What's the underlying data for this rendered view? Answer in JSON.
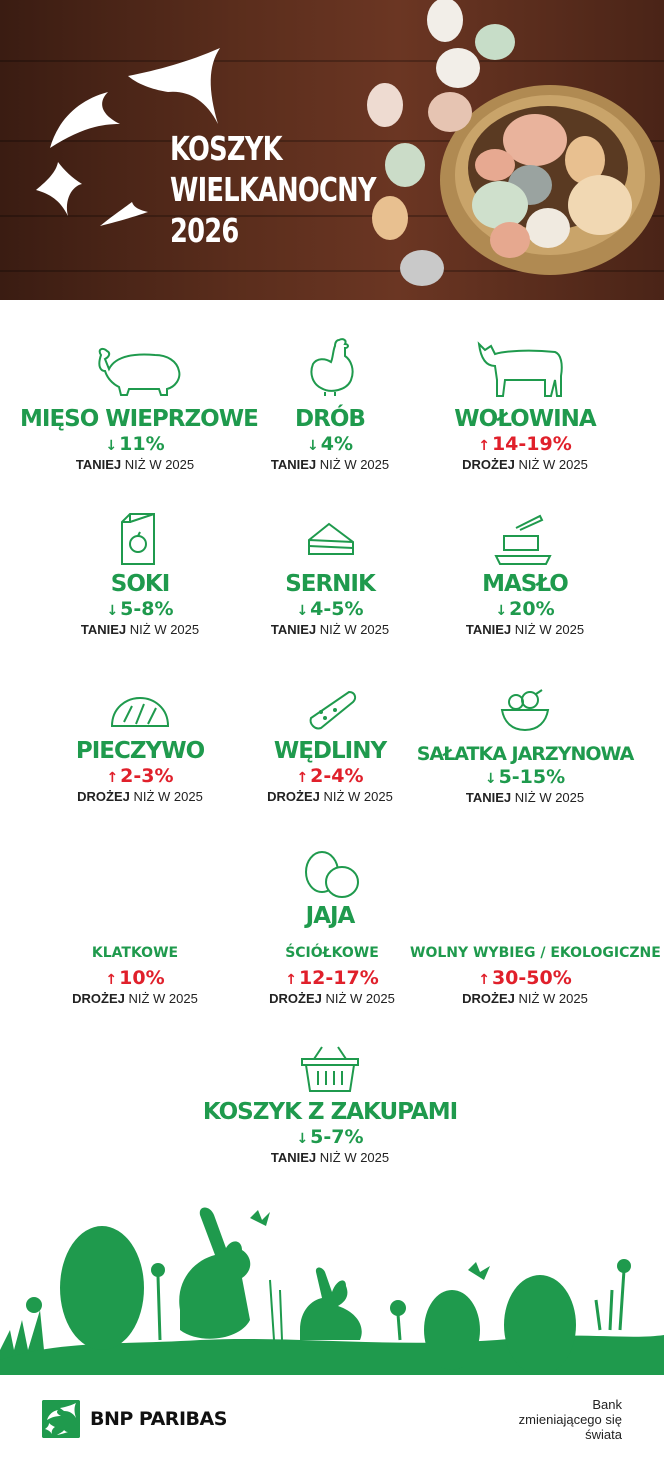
{
  "header": {
    "title_line1": "KOSZYK",
    "title_line2": "WIELKANOCNY",
    "title_line3": "2026"
  },
  "items": [
    {
      "name": "MIĘSO WIEPRZOWE",
      "arrow": "↓",
      "change": "11%",
      "trend": "TANIEJ",
      "note": "NIŻ W 2025",
      "direction": "down",
      "icon": "pig-icon"
    },
    {
      "name": "DRÓB",
      "arrow": "↓",
      "change": "4%",
      "trend": "TANIEJ",
      "note": "NIŻ W 2025",
      "direction": "down",
      "icon": "chicken-icon"
    },
    {
      "name": "WOŁOWINA",
      "arrow": "↑",
      "change": "14-19%",
      "trend": "DROŻEJ",
      "note": "NIŻ W 2025",
      "direction": "up",
      "icon": "cow-icon"
    },
    {
      "name": "SOKI",
      "arrow": "↓",
      "change": "5-8%",
      "trend": "TANIEJ",
      "note": "NIŻ W 2025",
      "direction": "down",
      "icon": "juice-box-icon"
    },
    {
      "name": "SERNIK",
      "arrow": "↓",
      "change": "4-5%",
      "trend": "TANIEJ",
      "note": "NIŻ W 2025",
      "direction": "down",
      "icon": "cheesecake-icon"
    },
    {
      "name": "MASŁO",
      "arrow": "↓",
      "change": "20%",
      "trend": "TANIEJ",
      "note": "NIŻ W 2025",
      "direction": "down",
      "icon": "butter-icon"
    },
    {
      "name": "PIECZYWO",
      "arrow": "↑",
      "change": "2-3%",
      "trend": "DROŻEJ",
      "note": "NIŻ W 2025",
      "direction": "up",
      "icon": "bread-icon"
    },
    {
      "name": "WĘDLINY",
      "arrow": "↑",
      "change": "2-4%",
      "trend": "DROŻEJ",
      "note": "NIŻ W 2025",
      "direction": "up",
      "icon": "sausage-icon"
    },
    {
      "name": "SAŁATKA JARZYNOWA",
      "arrow": "↓",
      "change": "5-15%",
      "trend": "TANIEJ",
      "note": "NIŻ W 2025",
      "direction": "down",
      "icon": "salad-bowl-icon"
    }
  ],
  "eggs": {
    "title": "JAJA",
    "icon": "eggs-icon",
    "types": [
      {
        "name": "KLATKOWE",
        "arrow": "↑",
        "change": "10%",
        "trend": "DROŻEJ",
        "note": "NIŻ W 2025"
      },
      {
        "name": "ŚCIÓŁKOWE",
        "arrow": "↑",
        "change": "12-17%",
        "trend": "DROŻEJ",
        "note": "NIŻ W 2025"
      },
      {
        "name": "WOLNY WYBIEG / EKOLOGICZNE",
        "arrow": "↑",
        "change": "30-50%",
        "trend": "DROŻEJ",
        "note": "NIŻ W 2025"
      }
    ]
  },
  "basket": {
    "name": "KOSZYK Z ZAKUPAMI",
    "arrow": "↓",
    "change": "5-7%",
    "trend": "TANIEJ",
    "note": "NIŻ W 2025",
    "icon": "shopping-basket-icon"
  },
  "footer": {
    "brand": "BNP PARIBAS",
    "tag_line1": "Bank",
    "tag_line2": "zmieniającego się",
    "tag_line3": "świata"
  },
  "colors": {
    "green": "#1f9a4d",
    "red": "#e0202b",
    "wood": "#5a2d1c"
  }
}
